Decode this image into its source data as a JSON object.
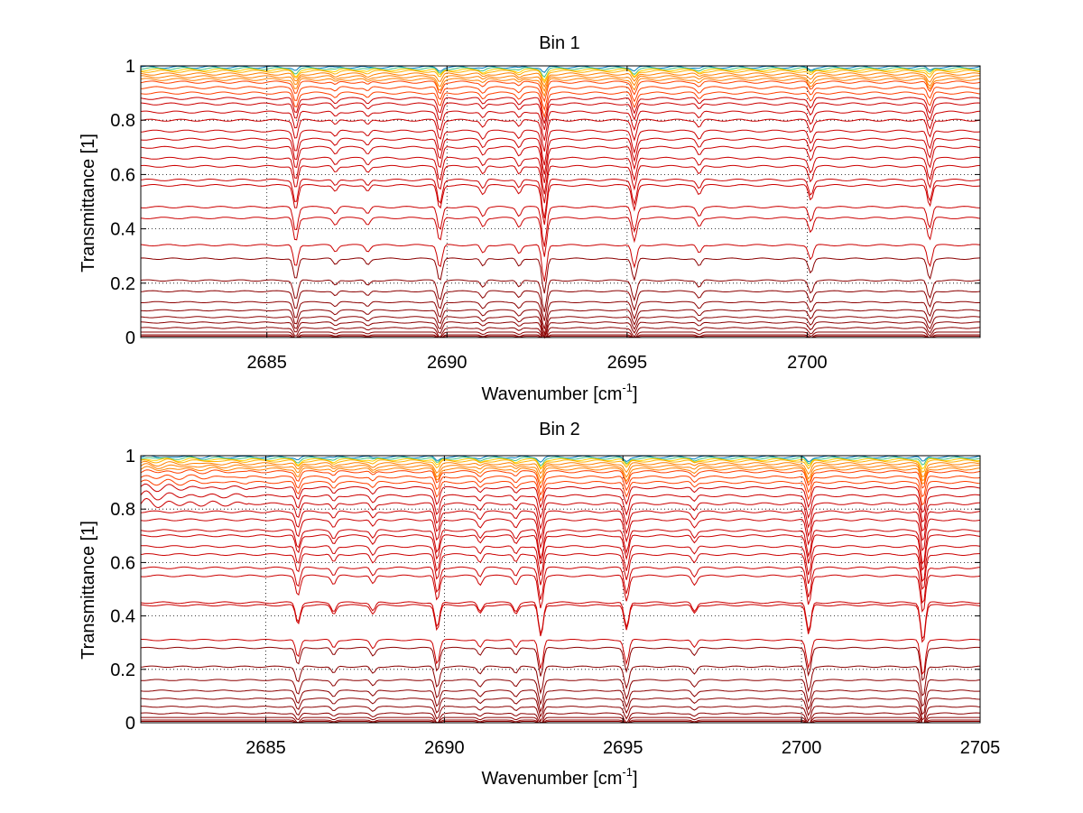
{
  "chart_data": [
    {
      "type": "line",
      "title": "Bin 1",
      "xlabel_main": "Wavenumber [cm",
      "xlabel_sup": "-1",
      "xlabel_close": "]",
      "ylabel": "Transmittance [1]",
      "xlim": [
        2681.5,
        2704.8
      ],
      "ylim": [
        0,
        1
      ],
      "xticks": [
        "2685",
        "2690",
        "2695",
        "2700"
      ],
      "yticks": [
        "0",
        "0.2",
        "0.4",
        "0.6",
        "0.8",
        "1"
      ],
      "grid": true,
      "absorption_lines": [
        {
          "x": 2685.8,
          "strength": 0.55
        },
        {
          "x": 2686.9,
          "strength": 0.15
        },
        {
          "x": 2687.8,
          "strength": 0.15
        },
        {
          "x": 2689.8,
          "strength": 0.55
        },
        {
          "x": 2691.0,
          "strength": 0.2
        },
        {
          "x": 2692.0,
          "strength": 0.2
        },
        {
          "x": 2692.7,
          "strength": 0.9
        },
        {
          "x": 2695.2,
          "strength": 0.55
        },
        {
          "x": 2697.0,
          "strength": 0.2
        },
        {
          "x": 2700.1,
          "strength": 0.35
        },
        {
          "x": 2703.4,
          "strength": 0.5
        }
      ],
      "series_levels": [
        0.0,
        0.005,
        0.01,
        0.02,
        0.035,
        0.055,
        0.075,
        0.1,
        0.13,
        0.17,
        0.21,
        0.29,
        0.34,
        0.44,
        0.48,
        0.56,
        0.58,
        0.63,
        0.66,
        0.7,
        0.73,
        0.76,
        0.8,
        0.83,
        0.86,
        0.88,
        0.9,
        0.92,
        0.94,
        0.95,
        0.96,
        0.97,
        0.98,
        0.985,
        0.99,
        0.995
      ],
      "colors": [
        "#8b0000",
        "#cc0000",
        "#ff4000",
        "#ff8000",
        "#ffb000",
        "#ffd000",
        "#40c080",
        "#0080c0"
      ]
    },
    {
      "type": "line",
      "title": "Bin 2",
      "xlabel_main": "Wavenumber [cm",
      "xlabel_sup": "-1",
      "xlabel_close": "]",
      "ylabel": "Transmittance [1]",
      "xlim": [
        2681.5,
        2705
      ],
      "ylim": [
        0,
        1
      ],
      "xticks": [
        "2685",
        "2690",
        "2695",
        "2700",
        "2705"
      ],
      "yticks": [
        "0",
        "0.2",
        "0.4",
        "0.6",
        "0.8",
        "1"
      ],
      "grid": true,
      "absorption_lines": [
        {
          "x": 2685.9,
          "strength": 0.45
        },
        {
          "x": 2686.9,
          "strength": 0.2
        },
        {
          "x": 2688.0,
          "strength": 0.2
        },
        {
          "x": 2689.8,
          "strength": 0.6
        },
        {
          "x": 2691.0,
          "strength": 0.2
        },
        {
          "x": 2692.0,
          "strength": 0.2
        },
        {
          "x": 2692.7,
          "strength": 0.75
        },
        {
          "x": 2695.1,
          "strength": 0.6
        },
        {
          "x": 2697.0,
          "strength": 0.2
        },
        {
          "x": 2700.2,
          "strength": 0.7
        },
        {
          "x": 2703.4,
          "strength": 0.9
        }
      ],
      "series_levels": [
        0.0,
        0.005,
        0.01,
        0.02,
        0.035,
        0.06,
        0.09,
        0.12,
        0.16,
        0.21,
        0.28,
        0.31,
        0.44,
        0.45,
        0.55,
        0.58,
        0.63,
        0.66,
        0.7,
        0.72,
        0.76,
        0.79,
        0.82,
        0.85,
        0.88,
        0.9,
        0.92,
        0.94,
        0.95,
        0.96,
        0.97,
        0.98,
        0.985,
        0.99,
        0.995
      ],
      "colors": [
        "#8b0000",
        "#cc0000",
        "#ff4000",
        "#ff8000",
        "#ffb000",
        "#ffd000",
        "#40c080",
        "#0080c0"
      ]
    }
  ]
}
